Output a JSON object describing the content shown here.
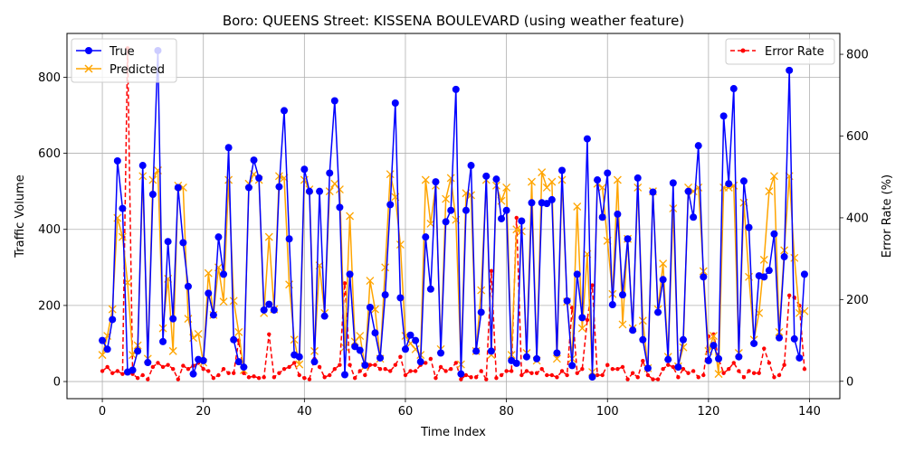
{
  "chart_data": {
    "type": "line",
    "title": "Boro: QUEENS Street: KISSENA BOULEVARD (using weather feature)",
    "xlabel": "Time Index",
    "ylabel": "Traffic Volume",
    "ylabel_right": "Error Rate (%)",
    "xlim": [
      -7,
      146
    ],
    "ylim": [
      -45,
      915
    ],
    "ylim_right": [
      -42.5,
      851
    ],
    "xticks": [
      0,
      20,
      40,
      60,
      80,
      100,
      120,
      140
    ],
    "yticks": [
      0,
      200,
      400,
      600,
      800
    ],
    "yticks_right": [
      0,
      200,
      400,
      600,
      800
    ],
    "grid": true,
    "legend_left": "top-left",
    "legend_right": "top-right",
    "colors": {
      "true": "#0000ff",
      "predicted": "#ffa500",
      "error": "#ff0000",
      "grid": "#b0b0b0"
    },
    "series": [
      {
        "name": "True",
        "axis": "left",
        "marker": "circle",
        "values": [
          108,
          85,
          163,
          580,
          455,
          25,
          30,
          80,
          568,
          50,
          492,
          870,
          105,
          368,
          165,
          510,
          365,
          250,
          20,
          58,
          55,
          232,
          175,
          380,
          282,
          615,
          110,
          52,
          38,
          510,
          582,
          535,
          188,
          203,
          188,
          512,
          712,
          375,
          70,
          65,
          558,
          500,
          52,
          500,
          172,
          548,
          738,
          458,
          18,
          282,
          92,
          82,
          43,
          195,
          128,
          62,
          228,
          465,
          732,
          220,
          85,
          122,
          108,
          52,
          380,
          243,
          525,
          75,
          420,
          450,
          768,
          20,
          450,
          568,
          80,
          182,
          540,
          80,
          532,
          428,
          450,
          55,
          48,
          422,
          65,
          470,
          60,
          470,
          468,
          478,
          75,
          555,
          212,
          42,
          282,
          168,
          638,
          12,
          530,
          432,
          548,
          202,
          440,
          228,
          375,
          135,
          535,
          110,
          35,
          498,
          182,
          268,
          58,
          522,
          38,
          110,
          500,
          432,
          620,
          275,
          55,
          95,
          60,
          698,
          520,
          770,
          65,
          527,
          405,
          100,
          278,
          275,
          292,
          388,
          115,
          328,
          818,
          112,
          62,
          282
        ]
      },
      {
        "name": "Predicted",
        "axis": "left",
        "marker": "x",
        "values": [
          70,
          120,
          190,
          430,
          380,
          260,
          70,
          95,
          540,
          60,
          530,
          555,
          140,
          270,
          80,
          515,
          510,
          165,
          115,
          125,
          50,
          285,
          175,
          300,
          210,
          530,
          212,
          130,
          30,
          520,
          545,
          530,
          180,
          380,
          190,
          540,
          535,
          255,
          110,
          45,
          530,
          505,
          80,
          305,
          180,
          500,
          520,
          505,
          90,
          435,
          105,
          120,
          40,
          265,
          190,
          60,
          300,
          545,
          485,
          360,
          120,
          100,
          85,
          70,
          530,
          415,
          515,
          85,
          480,
          535,
          425,
          45,
          495,
          490,
          80,
          240,
          530,
          70,
          515,
          475,
          510,
          70,
          400,
          395,
          75,
          525,
          55,
          550,
          510,
          525,
          60,
          530,
          210,
          60,
          460,
          140,
          335,
          25,
          520,
          510,
          370,
          230,
          530,
          150,
          375,
          140,
          510,
          160,
          35,
          500,
          190,
          310,
          65,
          455,
          40,
          90,
          510,
          500,
          510,
          290,
          80,
          120,
          20,
          510,
          510,
          515,
          75,
          470,
          275,
          110,
          180,
          320,
          500,
          540,
          130,
          345,
          540,
          325,
          180,
          185
        ]
      },
      {
        "name": "Error Rate",
        "axis": "right",
        "marker": "dot",
        "values": [
          25,
          35,
          20,
          25,
          18,
          815,
          18,
          8,
          15,
          5,
          35,
          45,
          35,
          40,
          30,
          5,
          38,
          30,
          38,
          45,
          30,
          25,
          8,
          15,
          30,
          20,
          20,
          100,
          20,
          10,
          12,
          8,
          10,
          115,
          10,
          20,
          30,
          35,
          45,
          15,
          8,
          5,
          55,
          35,
          10,
          15,
          30,
          40,
          240,
          40,
          8,
          25,
          15,
          40,
          40,
          30,
          30,
          25,
          40,
          60,
          15,
          25,
          25,
          40,
          45,
          55,
          8,
          35,
          25,
          30,
          45,
          5,
          15,
          10,
          10,
          25,
          5,
          270,
          8,
          15,
          25,
          25,
          400,
          15,
          25,
          20,
          20,
          30,
          15,
          15,
          10,
          25,
          15,
          180,
          20,
          30,
          150,
          235,
          15,
          15,
          40,
          30,
          30,
          35,
          5,
          20,
          10,
          50,
          15,
          5,
          5,
          30,
          40,
          35,
          10,
          30,
          20,
          25,
          10,
          15,
          110,
          115,
          55,
          20,
          30,
          45,
          25,
          10,
          25,
          20,
          20,
          80,
          45,
          10,
          15,
          40,
          210,
          205,
          185,
          30
        ]
      }
    ]
  }
}
